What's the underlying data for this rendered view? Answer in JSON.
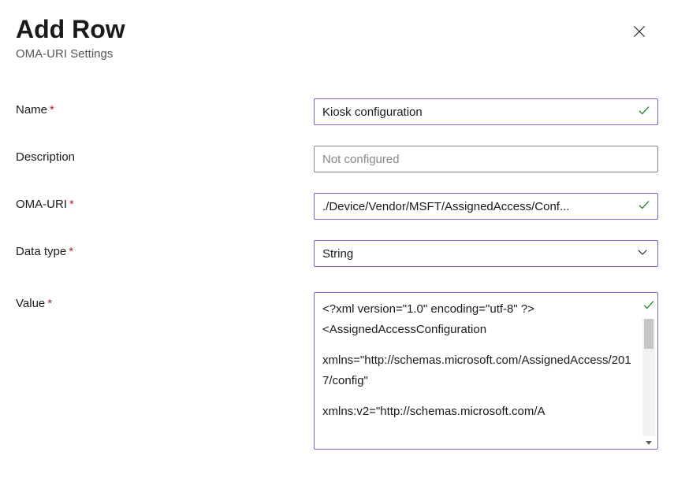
{
  "header": {
    "title": "Add Row",
    "subtitle": "OMA-URI Settings"
  },
  "fields": {
    "name": {
      "label": "Name",
      "required": true,
      "value": "Kiosk configuration",
      "validated": true
    },
    "description": {
      "label": "Description",
      "required": false,
      "placeholder": "Not configured"
    },
    "oma_uri": {
      "label": "OMA-URI",
      "required": true,
      "value": "./Device/Vendor/MSFT/AssignedAccess/Conf...",
      "validated": true
    },
    "data_type": {
      "label": "Data type",
      "required": true,
      "value": "String"
    },
    "value": {
      "label": "Value",
      "required": true,
      "validated": true,
      "lines": [
        "<?xml version=\"1.0\" encoding=\"utf-8\" ?>",
        "<AssignedAccessConfiguration",
        "",
        "xmlns=\"http://schemas.microsoft.com/AssignedAccess/2017/config\"",
        "",
        "xmlns:v2=\"http://schemas.microsoft.com/A"
      ]
    }
  },
  "colors": {
    "accent_border": "#8661c5",
    "success": "#107c10",
    "required": "#a4262c",
    "placeholder": "#8a8886"
  }
}
